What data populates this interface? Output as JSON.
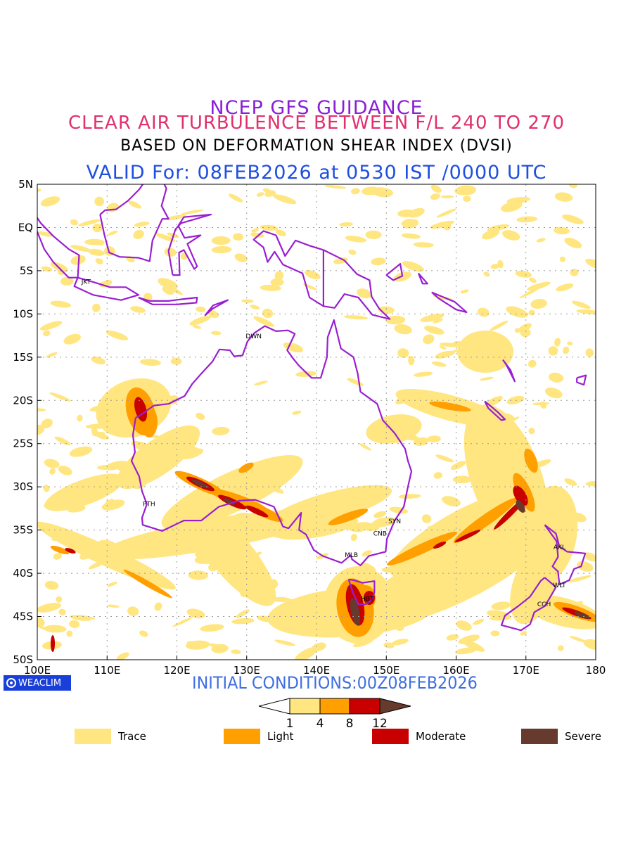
{
  "header": {
    "line1": "NCEP GFS GUIDANCE",
    "line2": "CLEAR AIR TURBULENCE BETWEEN F/L 240 TO 270",
    "line3": "BASED ON DEFORMATION SHEAR INDEX (DVSI)",
    "line4": "VALID For: 08FEB2026 at 0530 IST /0000 UTC"
  },
  "colors": {
    "trace": "#ffe680",
    "light": "#ffa000",
    "moderate": "#c80000",
    "severe": "#663a2d",
    "coast": "#9a1fd0",
    "title_blue": "#1f4fe0"
  },
  "map": {
    "lon_range": [
      100,
      180
    ],
    "lat_range": [
      -50,
      5
    ],
    "lon_ticks": [
      "100E",
      "110E",
      "120E",
      "130E",
      "140E",
      "150E",
      "160E",
      "170E",
      "180"
    ],
    "lat_ticks": [
      "5N",
      "EQ",
      "5S",
      "10S",
      "15S",
      "20S",
      "25S",
      "30S",
      "35S",
      "40S",
      "45S",
      "50S"
    ],
    "stations": [
      {
        "code": "JKT",
        "lon": 107,
        "lat": -6.2
      },
      {
        "code": "DWN",
        "lon": 131,
        "lat": -12.5
      },
      {
        "code": "PTH",
        "lon": 116,
        "lat": -31.9
      },
      {
        "code": "SYN",
        "lon": 151.2,
        "lat": -33.9
      },
      {
        "code": "CNB",
        "lon": 149.1,
        "lat": -35.3
      },
      {
        "code": "MLB",
        "lon": 145,
        "lat": -37.8
      },
      {
        "code": "HBT",
        "lon": 147.3,
        "lat": -42.9
      },
      {
        "code": "AKL",
        "lon": 174.8,
        "lat": -36.9
      },
      {
        "code": "WLT",
        "lon": 174.8,
        "lat": -41.3
      },
      {
        "code": "CCH",
        "lon": 172.6,
        "lat": -43.5
      }
    ]
  },
  "footer": {
    "brand": "WEACLIM",
    "initial_conditions": "INITIAL CONDITIONS:00Z08FEB2026"
  },
  "colorbar": {
    "ticks": [
      "1",
      "4",
      "8",
      "12"
    ]
  },
  "legend": [
    {
      "label": "Trace",
      "color": "#ffe680"
    },
    {
      "label": "Light",
      "color": "#ffa000"
    },
    {
      "label": "Moderate",
      "color": "#c80000"
    },
    {
      "label": "Severe",
      "color": "#663a2d"
    }
  ]
}
